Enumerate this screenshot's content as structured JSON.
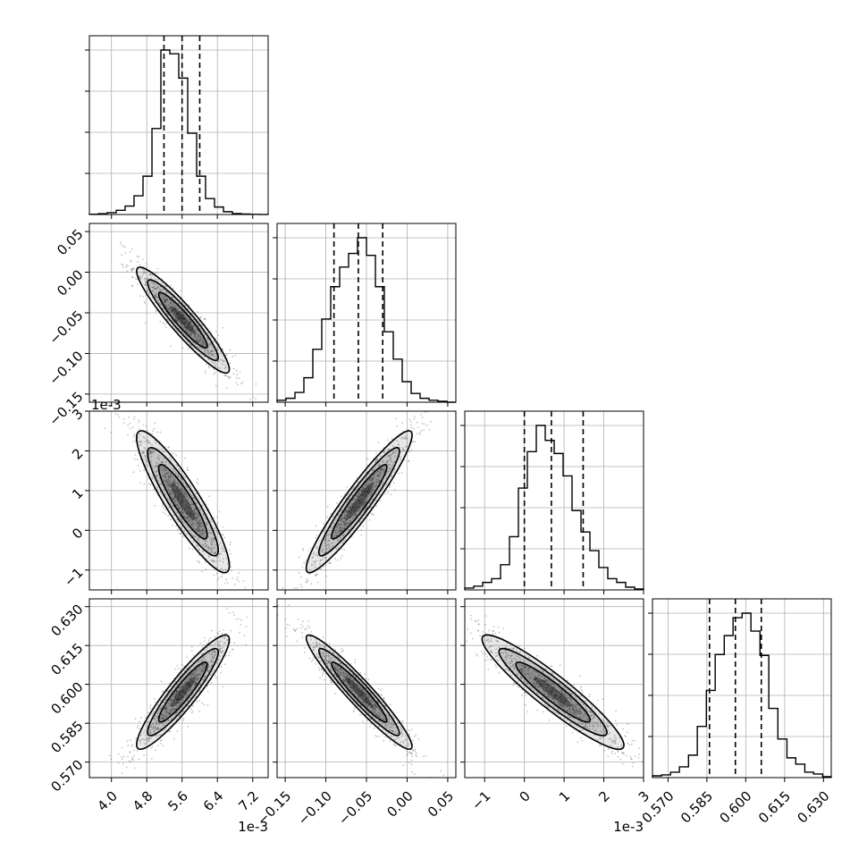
{
  "chart_data": {
    "type": "corner",
    "n_params": 4,
    "grid": true,
    "colors": {
      "line": "#000000",
      "grid": "#b0b0b0",
      "frame": "#000000",
      "point": "#555555",
      "hist2d": "#000000"
    },
    "params": [
      {
        "range": [
          3.5,
          7.55
        ],
        "ticks": [
          4.0,
          4.8,
          5.6,
          6.4,
          7.2
        ],
        "tick_labels": [
          "4.0",
          "4.8",
          "5.6",
          "6.4",
          "7.2"
        ],
        "offset_text": "1e-3",
        "mean": 5.62,
        "sd": 0.5,
        "quantiles": [
          5.19,
          5.6,
          6.0
        ]
      },
      {
        "range": [
          -0.16,
          0.06
        ],
        "ticks": [
          -0.15,
          -0.1,
          -0.05,
          0.0,
          0.05
        ],
        "tick_labels": [
          "−0.15",
          "−0.10",
          "−0.05",
          "0.00",
          "0.05"
        ],
        "offset_text": "",
        "mean": -0.059,
        "sd": 0.031,
        "quantiles": [
          -0.09,
          -0.06,
          -0.03
        ]
      },
      {
        "range": [
          -1.5,
          3.0
        ],
        "ticks": [
          -1,
          0,
          1,
          2,
          3
        ],
        "tick_labels": [
          "−1",
          "0",
          "1",
          "2",
          "3"
        ],
        "offset_text": "1e-3",
        "mean": 0.72,
        "sd": 0.85,
        "quantiles": [
          0.0,
          0.68,
          1.48
        ]
      },
      {
        "range": [
          0.564,
          0.633
        ],
        "ticks": [
          0.57,
          0.585,
          0.6,
          0.615,
          0.63
        ],
        "tick_labels": [
          "0.570",
          "0.585",
          "0.600",
          "0.615",
          "0.630"
        ],
        "offset_text": "",
        "mean": 0.597,
        "sd": 0.0105,
        "quantiles": [
          0.586,
          0.596,
          0.606
        ]
      }
    ],
    "correlations": [
      [
        0,
        1,
        -0.93
      ],
      [
        0,
        2,
        -0.9
      ],
      [
        0,
        3,
        0.92
      ],
      [
        1,
        2,
        0.94
      ],
      [
        1,
        3,
        -0.95
      ],
      [
        2,
        3,
        -0.93
      ]
    ],
    "histogram_1d": [
      {
        "param": 0,
        "bins": [
          3.5,
          3.703,
          3.905,
          4.108,
          4.31,
          4.512,
          4.715,
          4.918,
          5.12,
          5.323,
          5.525,
          5.728,
          5.93,
          6.132,
          6.335,
          6.538,
          6.74,
          6.943,
          7.145,
          7.348,
          7.55
        ],
        "counts": [
          0.3,
          0.9,
          2.0,
          4.5,
          9,
          20,
          41,
          92,
          176,
          172,
          146,
          87,
          41,
          17,
          8,
          3,
          1,
          0.5,
          0.2,
          0.1
        ]
      },
      {
        "param": 1,
        "bins": [
          -0.16,
          -0.149,
          -0.138,
          -0.127,
          -0.116,
          -0.105,
          -0.094,
          -0.083,
          -0.072,
          -0.061,
          -0.05,
          -0.039,
          -0.028,
          -0.017,
          -0.006,
          0.005,
          0.016,
          0.027,
          0.038,
          0.049,
          0.06
        ],
        "counts": [
          2,
          4,
          10,
          25,
          54,
          85,
          118,
          138,
          152,
          168,
          150,
          118,
          72,
          44,
          21,
          9,
          4,
          2,
          1,
          0
        ]
      },
      {
        "param": 2,
        "bins": [
          -1.5,
          -1.275,
          -1.05,
          -0.825,
          -0.6,
          -0.375,
          -0.15,
          0.075,
          0.3,
          0.525,
          0.75,
          0.975,
          1.2,
          1.425,
          1.65,
          1.875,
          2.1,
          2.325,
          2.55,
          2.775,
          3.0
        ],
        "counts": [
          2,
          4,
          8,
          12,
          27,
          57,
          109,
          148,
          176,
          160,
          146,
          122,
          85,
          62,
          42,
          24,
          12,
          8,
          3,
          1
        ]
      },
      {
        "param": 3,
        "bins": [
          0.564,
          0.5675,
          0.571,
          0.5744,
          0.5779,
          0.5813,
          0.5848,
          0.5882,
          0.5917,
          0.5951,
          0.5986,
          0.602,
          0.6055,
          0.6089,
          0.6124,
          0.6159,
          0.6193,
          0.6228,
          0.6262,
          0.6297,
          0.633
        ],
        "counts": [
          2,
          3,
          6,
          12,
          25,
          57,
          97,
          137,
          158,
          178,
          183,
          163,
          136,
          77,
          43,
          22,
          15,
          6,
          4,
          1
        ]
      }
    ]
  }
}
